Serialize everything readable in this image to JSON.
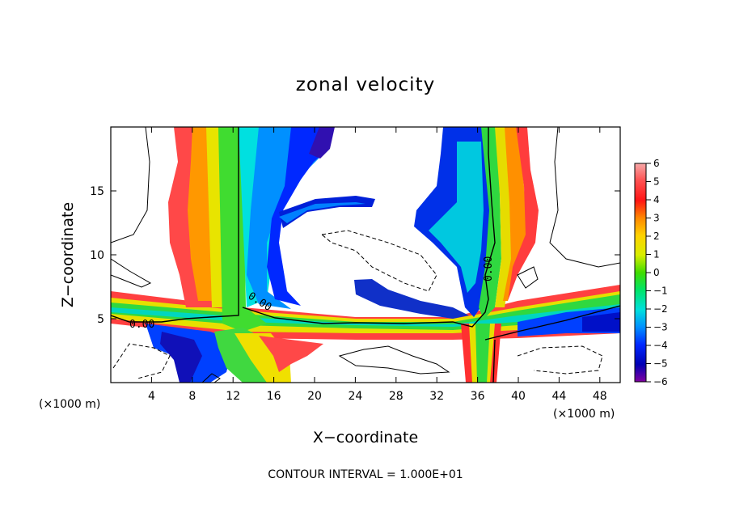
{
  "chart_data": {
    "type": "heatmap",
    "title": "zonal velocity",
    "xlabel": "X−coordinate",
    "ylabel": "Z−coordinate",
    "x_unit_left": "(×1000 m)",
    "x_unit_right": "(×1000 m)",
    "xlim": [
      0,
      50
    ],
    "ylim": [
      0,
      20
    ],
    "x_ticks": [
      4,
      8,
      12,
      16,
      20,
      24,
      28,
      32,
      36,
      40,
      44,
      48
    ],
    "x_tick_labels": [
      "4",
      "8",
      "12",
      "16",
      "20",
      "24",
      "28",
      "32",
      "36",
      "40",
      "44",
      "48"
    ],
    "y_ticks": [
      5,
      10,
      15
    ],
    "y_tick_labels": [
      "5",
      "10",
      "15"
    ],
    "colorbar": {
      "min": -6,
      "max": 6,
      "tick_values": [
        6,
        5,
        4,
        3,
        2,
        1,
        0,
        -1,
        -2,
        -3,
        -4,
        -5,
        -6
      ],
      "tick_labels": [
        "6",
        "5",
        "4",
        "3",
        "2",
        "1",
        "0",
        "−1",
        "−2",
        "−3",
        "−4",
        "−5",
        "−6"
      ]
    },
    "contour_labels": [
      "0.00",
      "0.00",
      "0.00"
    ],
    "annotation": "CONTOUR INTERVAL = 1.000E+01"
  }
}
